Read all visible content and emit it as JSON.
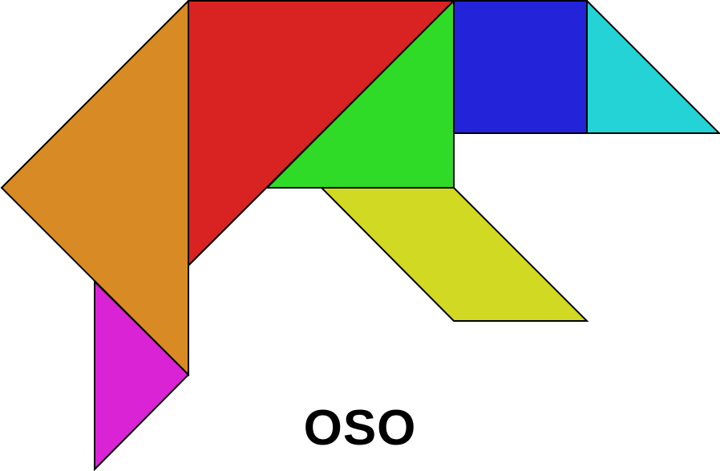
{
  "caption": "OSO",
  "pieces": [
    {
      "id": "large-triangle-orange",
      "color": "#d88b24"
    },
    {
      "id": "large-triangle-red",
      "color": "#d92323"
    },
    {
      "id": "medium-triangle-green",
      "color": "#2fdb26"
    },
    {
      "id": "square-blue",
      "color": "#2323d9"
    },
    {
      "id": "small-triangle-cyan",
      "color": "#23d3d6"
    },
    {
      "id": "parallelogram-yellow",
      "color": "#d1d923"
    },
    {
      "id": "small-triangle-magenta",
      "color": "#db23d6"
    }
  ]
}
